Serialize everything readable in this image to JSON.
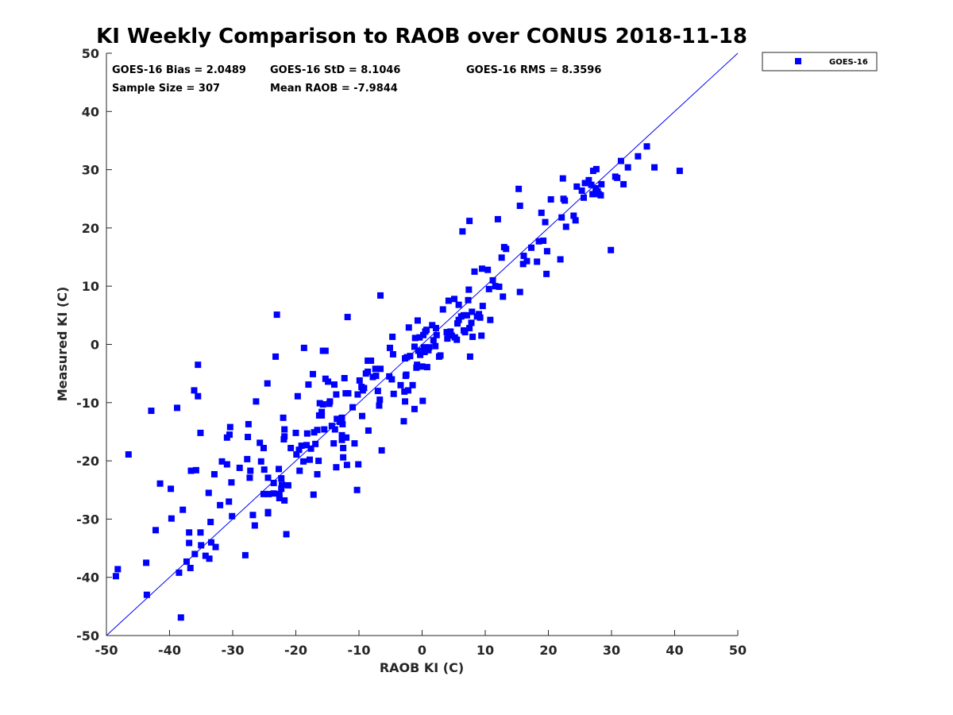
{
  "chart_data": {
    "type": "scatter",
    "title": "KI Weekly Comparison to RAOB over CONUS 2018-11-18",
    "xlabel": "RAOB KI (C)",
    "ylabel": "Measured KI (C)",
    "xlim": [
      -50,
      50
    ],
    "ylim": [
      -50,
      50
    ],
    "xticks": [
      -50,
      -40,
      -30,
      -20,
      -10,
      0,
      10,
      20,
      30,
      40,
      50
    ],
    "yticks": [
      -50,
      -40,
      -30,
      -20,
      -10,
      0,
      10,
      20,
      30,
      40,
      50
    ],
    "grid": false,
    "legend_position": "outside-top-right",
    "color": "#0000ff",
    "stats": {
      "bias": "GOES-16 Bias = 2.0489",
      "std": "GOES-16 StD = 8.1046",
      "rms": "GOES-16 RMS = 8.3596",
      "sample": "Sample Size = 307",
      "mean": "Mean RAOB = -7.9844"
    },
    "reference_line": {
      "from": [
        -50,
        -50
      ],
      "to": [
        50,
        50
      ]
    },
    "series": [
      {
        "name": "GOES-16",
        "points": [
          [
            -48.5,
            -39.8
          ],
          [
            -48.2,
            -38.6
          ],
          [
            -46.5,
            -18.9
          ],
          [
            -43.7,
            -37.5
          ],
          [
            -43.6,
            -43.0
          ],
          [
            -42.9,
            -11.4
          ],
          [
            -42.2,
            -31.9
          ],
          [
            -41.5,
            -23.9
          ],
          [
            -39.8,
            -24.8
          ],
          [
            -39.7,
            -29.9
          ],
          [
            -38.8,
            -10.9
          ],
          [
            -38.5,
            -39.2
          ],
          [
            -38.2,
            -46.9
          ],
          [
            -37.9,
            -28.4
          ],
          [
            -37.3,
            -37.3
          ],
          [
            -36.9,
            -32.3
          ],
          [
            -36.9,
            -34.1
          ],
          [
            -36.7,
            -38.4
          ],
          [
            -36.6,
            -21.7
          ],
          [
            -36.1,
            -7.9
          ],
          [
            -36.0,
            -36.0
          ],
          [
            -35.8,
            -21.6
          ],
          [
            -35.5,
            -8.9
          ],
          [
            -35.5,
            -3.5
          ],
          [
            -35.1,
            -15.2
          ],
          [
            -35.1,
            -32.3
          ],
          [
            -35.0,
            -34.5
          ],
          [
            -34.3,
            -36.3
          ],
          [
            -33.8,
            -25.5
          ],
          [
            -33.7,
            -36.8
          ],
          [
            -33.5,
            -30.5
          ],
          [
            -33.4,
            -34.0
          ],
          [
            -32.9,
            -22.3
          ],
          [
            -32.7,
            -34.8
          ],
          [
            -32.0,
            -27.6
          ],
          [
            -31.7,
            -20.1
          ],
          [
            -30.9,
            -20.6
          ],
          [
            -30.9,
            -16.0
          ],
          [
            -30.6,
            -27.0
          ],
          [
            -30.5,
            -15.5
          ],
          [
            -30.4,
            -14.2
          ],
          [
            -30.2,
            -23.7
          ],
          [
            -30.1,
            -29.5
          ],
          [
            -28.9,
            -21.2
          ],
          [
            -28.0,
            -36.2
          ],
          [
            -27.7,
            -19.7
          ],
          [
            -27.6,
            -15.9
          ],
          [
            -27.5,
            -13.7
          ],
          [
            -27.3,
            -22.9
          ],
          [
            -27.2,
            -21.7
          ],
          [
            -26.8,
            -29.3
          ],
          [
            -26.5,
            -31.1
          ],
          [
            -26.3,
            -9.8
          ],
          [
            -25.7,
            -16.9
          ],
          [
            -25.5,
            -20.1
          ],
          [
            -25.1,
            -17.8
          ],
          [
            -25.1,
            -25.7
          ],
          [
            -25.0,
            -21.5
          ],
          [
            -24.5,
            -6.7
          ],
          [
            -24.4,
            -22.9
          ],
          [
            -24.4,
            -28.8
          ],
          [
            -24.4,
            -29.0
          ],
          [
            -24.3,
            -25.7
          ],
          [
            -23.5,
            -25.6
          ],
          [
            -23.5,
            -23.8
          ],
          [
            -23.2,
            -2.1
          ],
          [
            -23.0,
            5.1
          ],
          [
            -22.7,
            -21.4
          ],
          [
            -22.6,
            -26.4
          ],
          [
            -22.6,
            -25.7
          ],
          [
            -22.3,
            -24.8
          ],
          [
            -22.3,
            -23.0
          ],
          [
            -22.2,
            -24.1
          ],
          [
            -22.0,
            -12.6
          ],
          [
            -21.9,
            -16.3
          ],
          [
            -21.8,
            -15.8
          ],
          [
            -21.8,
            -14.6
          ],
          [
            -21.8,
            -26.8
          ],
          [
            -21.5,
            -32.6
          ],
          [
            -21.2,
            -24.2
          ],
          [
            -20.8,
            -17.8
          ],
          [
            -20.0,
            -15.2
          ],
          [
            -19.9,
            -18.9
          ],
          [
            -19.7,
            -8.9
          ],
          [
            -19.5,
            -18.1
          ],
          [
            -19.4,
            -21.7
          ],
          [
            -19.1,
            -17.4
          ],
          [
            -18.8,
            -20.1
          ],
          [
            -18.7,
            -0.6
          ],
          [
            -18.3,
            -17.3
          ],
          [
            -18.2,
            -15.3
          ],
          [
            -18.0,
            -6.9
          ],
          [
            -17.8,
            -19.8
          ],
          [
            -17.6,
            -17.9
          ],
          [
            -17.3,
            -5.1
          ],
          [
            -17.2,
            -25.8
          ],
          [
            -17.1,
            -15.1
          ],
          [
            -16.9,
            -17.1
          ],
          [
            -16.6,
            -14.7
          ],
          [
            -16.6,
            -22.3
          ],
          [
            -16.4,
            -20.0
          ],
          [
            -16.3,
            -12.2
          ],
          [
            -16.2,
            -10.1
          ],
          [
            -15.9,
            -11.6
          ],
          [
            -15.9,
            -12.2
          ],
          [
            -15.7,
            -1.1
          ],
          [
            -15.7,
            -10.3
          ],
          [
            -15.5,
            -14.6
          ],
          [
            -15.3,
            -1.1
          ],
          [
            -15.3,
            -5.9
          ],
          [
            -14.9,
            -6.4
          ],
          [
            -14.7,
            -10.2
          ],
          [
            -14.6,
            -9.8
          ],
          [
            -14.3,
            -14.0
          ],
          [
            -14.0,
            -17.0
          ],
          [
            -13.9,
            -6.9
          ],
          [
            -13.8,
            -14.6
          ],
          [
            -13.6,
            -8.6
          ],
          [
            -13.6,
            -21.1
          ],
          [
            -13.5,
            -12.8
          ],
          [
            -13.0,
            -13.3
          ],
          [
            -12.9,
            -12.9
          ],
          [
            -12.7,
            -15.6
          ],
          [
            -12.7,
            -16.4
          ],
          [
            -12.7,
            -12.6
          ],
          [
            -12.6,
            -13.7
          ],
          [
            -12.5,
            -17.8
          ],
          [
            -12.5,
            -19.4
          ],
          [
            -12.3,
            -5.8
          ],
          [
            -12.1,
            -8.4
          ],
          [
            -12.0,
            -16.0
          ],
          [
            -11.9,
            -20.7
          ],
          [
            -11.8,
            4.7
          ],
          [
            -11.7,
            -8.4
          ],
          [
            -11.0,
            -10.8
          ],
          [
            -10.7,
            -17.0
          ],
          [
            -10.3,
            -25.0
          ],
          [
            -10.2,
            -8.6
          ],
          [
            -10.1,
            -20.6
          ],
          [
            -9.9,
            -6.2
          ],
          [
            -9.6,
            -7.3
          ],
          [
            -9.5,
            -12.3
          ],
          [
            -9.4,
            -7.9
          ],
          [
            -9.2,
            -7.5
          ],
          [
            -8.9,
            -5.0
          ],
          [
            -8.6,
            -2.8
          ],
          [
            -8.6,
            -4.7
          ],
          [
            -8.5,
            -14.8
          ],
          [
            -8.1,
            -2.8
          ],
          [
            -7.8,
            -5.6
          ],
          [
            -7.4,
            -4.2
          ],
          [
            -7.3,
            -5.4
          ],
          [
            -7.0,
            -8.0
          ],
          [
            -6.8,
            -10.5
          ],
          [
            -6.7,
            -9.5
          ],
          [
            -6.6,
            8.4
          ],
          [
            -6.6,
            -4.2
          ],
          [
            -6.4,
            -18.2
          ],
          [
            -5.2,
            -5.5
          ],
          [
            -5.1,
            -0.6
          ],
          [
            -4.8,
            -6.0
          ],
          [
            -4.7,
            1.3
          ],
          [
            -4.6,
            -1.7
          ],
          [
            -4.5,
            -8.5
          ],
          [
            -3.4,
            -7.0
          ],
          [
            -2.9,
            -13.2
          ],
          [
            -2.8,
            -8.1
          ],
          [
            -2.7,
            -2.4
          ],
          [
            -2.7,
            -9.8
          ],
          [
            -2.6,
            -5.4
          ],
          [
            -2.5,
            -5.2
          ],
          [
            -2.4,
            -2.2
          ],
          [
            -2.2,
            -7.9
          ],
          [
            -2.1,
            2.9
          ],
          [
            -1.9,
            -2.0
          ],
          [
            -1.5,
            -7.0
          ],
          [
            -1.2,
            -11.1
          ],
          [
            -1.2,
            -0.4
          ],
          [
            -1.1,
            1.1
          ],
          [
            -0.9,
            -4.0
          ],
          [
            -0.8,
            -3.5
          ],
          [
            -0.7,
            4.1
          ],
          [
            -0.6,
            -1.1
          ],
          [
            -0.4,
            1.2
          ],
          [
            -0.3,
            -1.8
          ],
          [
            0.0,
            -3.8
          ],
          [
            0.1,
            -9.7
          ],
          [
            0.2,
            1.6
          ],
          [
            0.3,
            -0.5
          ],
          [
            0.4,
            -1.3
          ],
          [
            0.5,
            2.2
          ],
          [
            0.7,
            2.5
          ],
          [
            0.8,
            -3.9
          ],
          [
            1.0,
            -1.0
          ],
          [
            1.1,
            -0.5
          ],
          [
            1.6,
            3.3
          ],
          [
            1.8,
            0.7
          ],
          [
            2.1,
            -0.3
          ],
          [
            2.2,
            2.8
          ],
          [
            2.3,
            1.6
          ],
          [
            2.7,
            -2.1
          ],
          [
            2.9,
            -1.9
          ],
          [
            3.3,
            6.0
          ],
          [
            3.9,
            2.1
          ],
          [
            4.0,
            1.0
          ],
          [
            4.2,
            7.5
          ],
          [
            4.3,
            1.6
          ],
          [
            4.5,
            2.2
          ],
          [
            4.7,
            1.5
          ],
          [
            5.1,
            7.8
          ],
          [
            5.2,
            1.2
          ],
          [
            5.5,
            0.8
          ],
          [
            5.6,
            3.6
          ],
          [
            5.8,
            6.8
          ],
          [
            5.8,
            4.2
          ],
          [
            6.2,
            4.8
          ],
          [
            6.4,
            19.4
          ],
          [
            6.6,
            2.4
          ],
          [
            6.6,
            5.0
          ],
          [
            6.8,
            2.1
          ],
          [
            7.1,
            5.0
          ],
          [
            7.3,
            7.6
          ],
          [
            7.4,
            9.4
          ],
          [
            7.5,
            2.8
          ],
          [
            7.5,
            21.2
          ],
          [
            7.6,
            -2.1
          ],
          [
            7.8,
            3.7
          ],
          [
            7.9,
            5.6
          ],
          [
            8.0,
            1.3
          ],
          [
            8.3,
            12.5
          ],
          [
            8.7,
            4.8
          ],
          [
            9.0,
            5.2
          ],
          [
            9.2,
            4.6
          ],
          [
            9.4,
            1.5
          ],
          [
            9.5,
            13.0
          ],
          [
            9.6,
            6.6
          ],
          [
            10.4,
            12.8
          ],
          [
            10.6,
            9.5
          ],
          [
            10.8,
            4.2
          ],
          [
            11.2,
            11.0
          ],
          [
            11.6,
            10.0
          ],
          [
            12.0,
            21.5
          ],
          [
            12.2,
            9.9
          ],
          [
            12.6,
            14.9
          ],
          [
            12.8,
            8.2
          ],
          [
            13.0,
            16.7
          ],
          [
            13.3,
            16.4
          ],
          [
            15.3,
            26.7
          ],
          [
            15.5,
            23.8
          ],
          [
            15.5,
            9.0
          ],
          [
            16.0,
            13.8
          ],
          [
            16.1,
            15.2
          ],
          [
            16.6,
            14.3
          ],
          [
            17.3,
            16.6
          ],
          [
            18.2,
            14.2
          ],
          [
            18.5,
            17.7
          ],
          [
            18.9,
            22.6
          ],
          [
            19.2,
            17.8
          ],
          [
            19.5,
            21.0
          ],
          [
            19.7,
            12.1
          ],
          [
            19.8,
            16.0
          ],
          [
            20.4,
            24.9
          ],
          [
            21.9,
            14.6
          ],
          [
            22.1,
            21.8
          ],
          [
            22.3,
            28.5
          ],
          [
            22.4,
            25.0
          ],
          [
            22.6,
            24.7
          ],
          [
            22.8,
            20.2
          ],
          [
            24.0,
            22.1
          ],
          [
            24.3,
            21.3
          ],
          [
            24.5,
            27.1
          ],
          [
            25.3,
            26.4
          ],
          [
            25.6,
            25.2
          ],
          [
            25.8,
            27.7
          ],
          [
            26.4,
            28.2
          ],
          [
            26.8,
            27.4
          ],
          [
            27.0,
            25.8
          ],
          [
            27.1,
            29.8
          ],
          [
            27.5,
            26.8
          ],
          [
            27.6,
            30.1
          ],
          [
            27.8,
            26.3
          ],
          [
            28.0,
            25.8
          ],
          [
            28.3,
            25.6
          ],
          [
            28.4,
            27.5
          ],
          [
            29.9,
            16.2
          ],
          [
            30.6,
            28.8
          ],
          [
            30.9,
            28.6
          ],
          [
            31.5,
            31.5
          ],
          [
            31.9,
            27.5
          ],
          [
            32.6,
            30.4
          ],
          [
            34.2,
            32.3
          ],
          [
            35.6,
            34.0
          ],
          [
            36.8,
            30.4
          ],
          [
            40.8,
            29.8
          ]
        ]
      }
    ]
  }
}
